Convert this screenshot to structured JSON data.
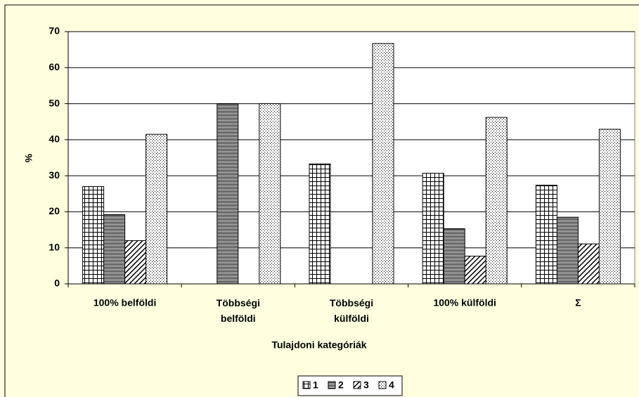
{
  "chart_data": {
    "type": "bar",
    "x_label": "Tulajdoni kategóriák",
    "y_label": "%",
    "categories": [
      "100% belföldi",
      "Többségi\nbelföldi",
      "Többségi\nkülföldi",
      "100% külföldi",
      "Σ"
    ],
    "series": [
      {
        "name": "1",
        "pattern": "grid",
        "values": [
          27,
          0,
          33.3,
          30.7,
          27.4
        ]
      },
      {
        "name": "2",
        "pattern": "horizontal",
        "values": [
          19.2,
          50,
          0,
          15.3,
          18.5
        ]
      },
      {
        "name": "3",
        "pattern": "diagonal",
        "values": [
          12,
          0,
          0,
          7.7,
          11.1
        ]
      },
      {
        "name": "4",
        "pattern": "dots",
        "values": [
          41.5,
          50,
          66.7,
          46.2,
          42.9
        ]
      }
    ],
    "ylim": [
      0,
      70
    ],
    "yticks": [
      0,
      10,
      20,
      30,
      40,
      50,
      60,
      70
    ],
    "grid": true,
    "legend": "bottom"
  }
}
